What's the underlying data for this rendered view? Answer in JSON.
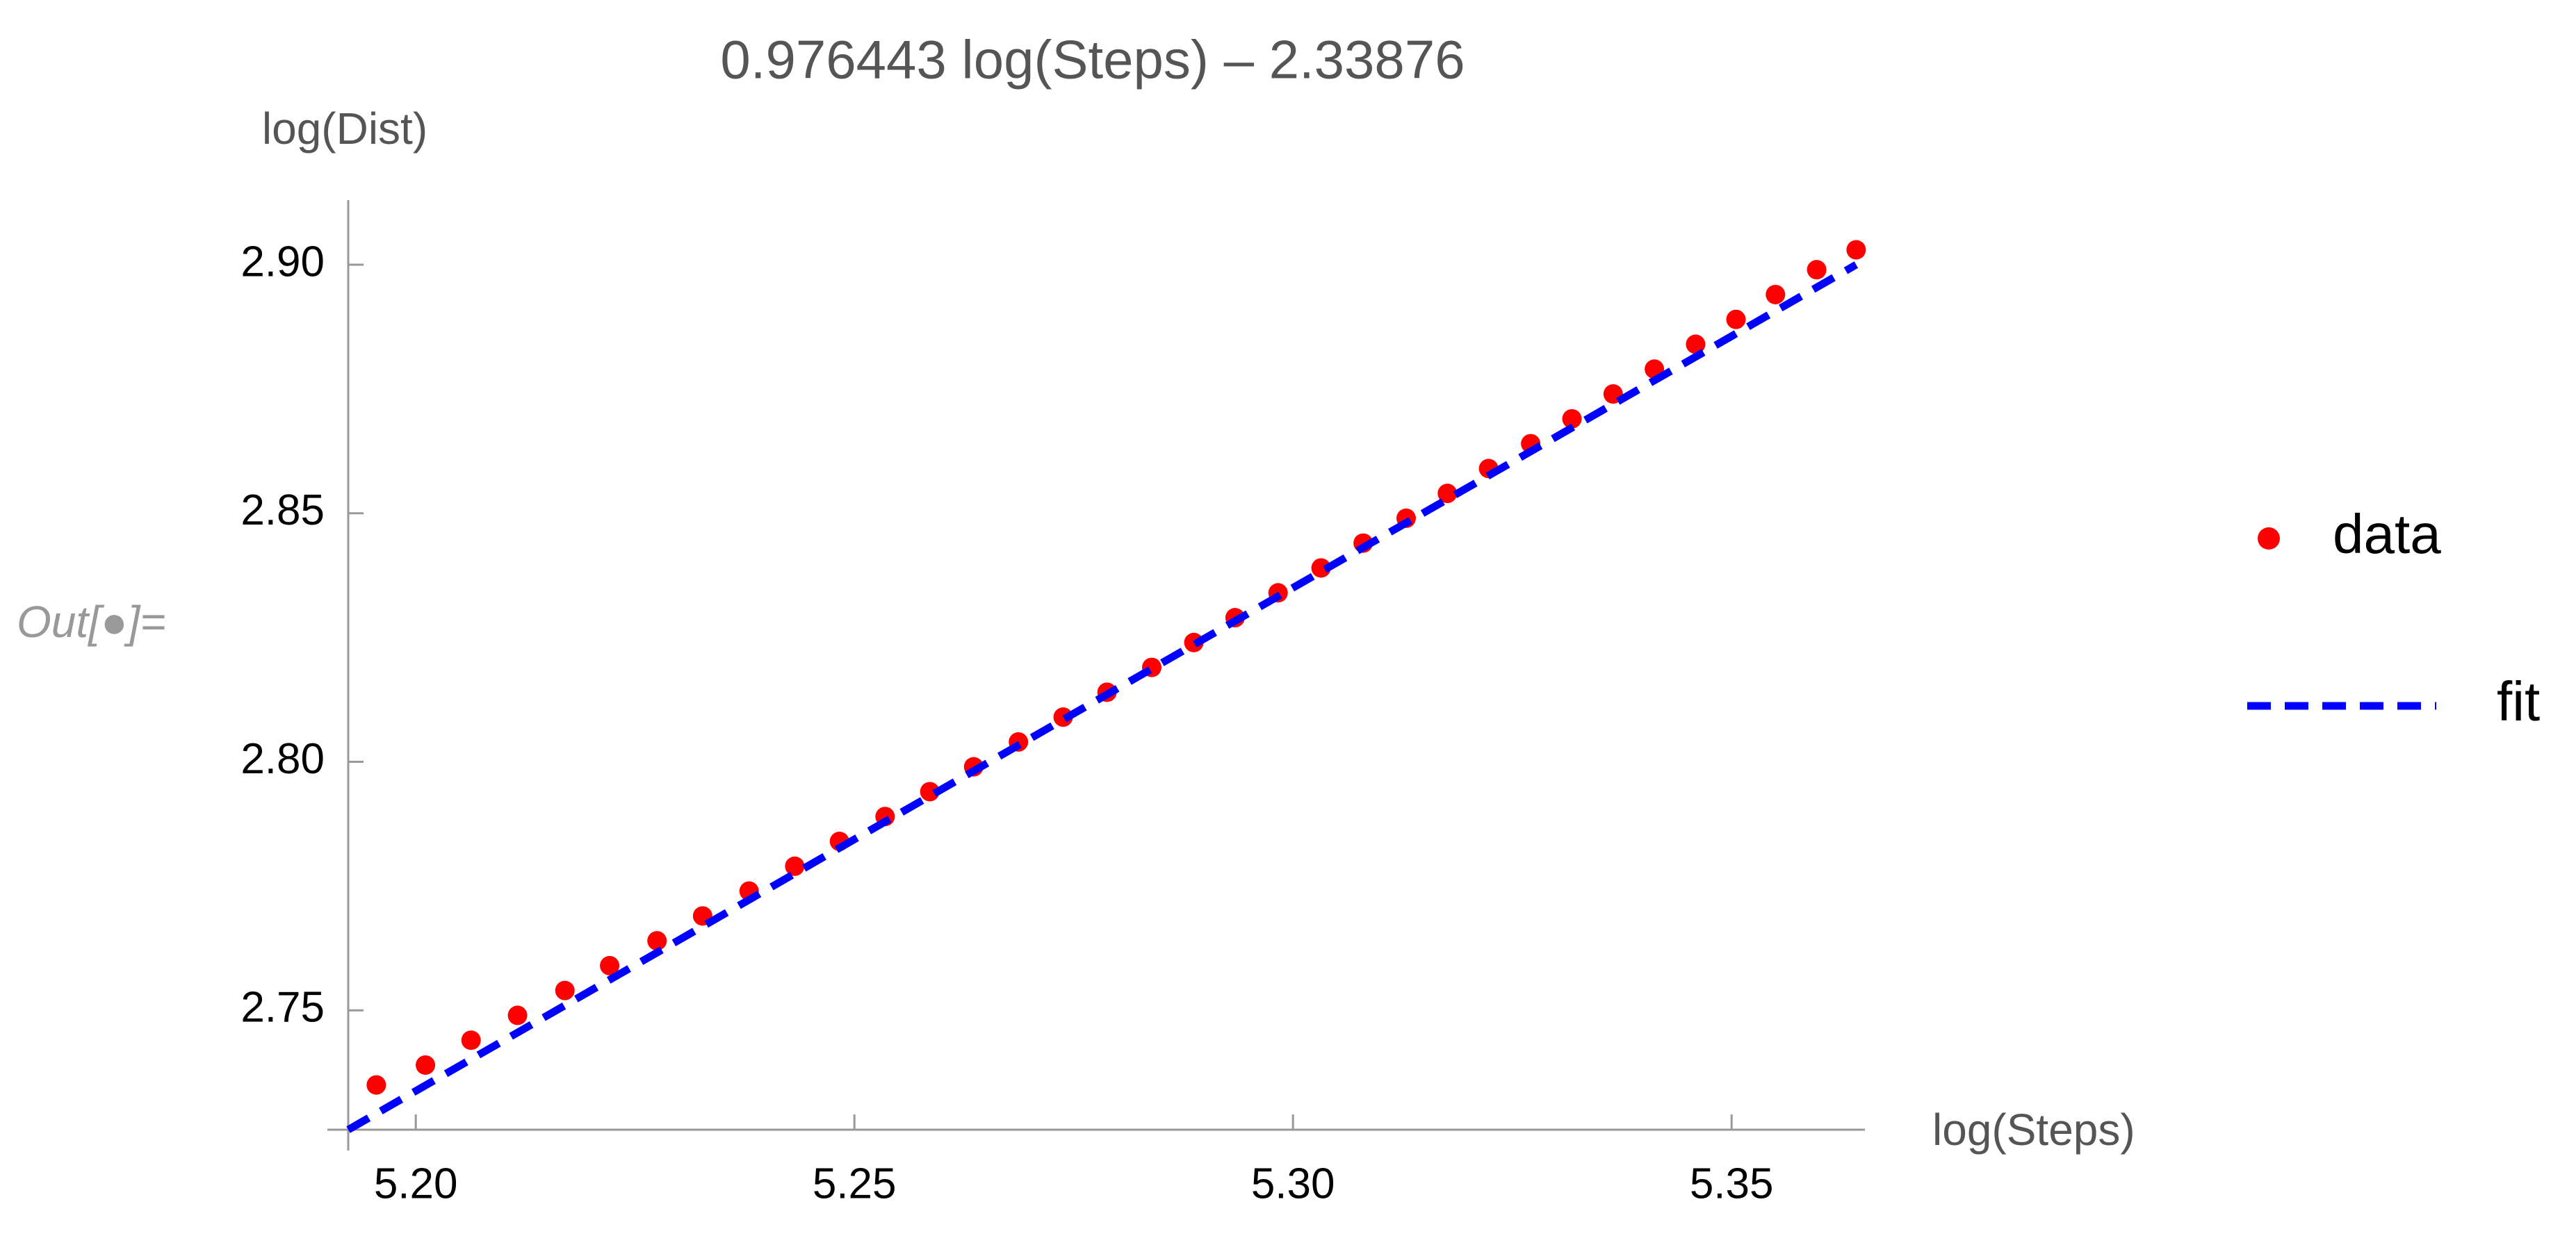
{
  "cell_label": "Out[●]=",
  "chart_data": {
    "type": "scatter",
    "title": "0.976443 log(Steps) – 2.33876",
    "x_label": "log(Steps)",
    "y_label": "log(Dist)",
    "xlim": [
      5.1923,
      5.3652
    ],
    "ylim": [
      2.726,
      2.913
    ],
    "xticks": [
      {
        "value": 5.2,
        "label": "5.20"
      },
      5.25,
      {
        "value": 5.3,
        "label": "5.30"
      },
      5.35
    ],
    "yticks": [
      {
        "value": 2.9,
        "label": "2.90"
      },
      2.85,
      {
        "value": 2.8,
        "label": "2.80"
      },
      2.75
    ],
    "legend": "right",
    "series": [
      {
        "name": "data",
        "color": "#ff0000",
        "style": "points",
        "x": [
          5.1955,
          5.2011,
          5.2063,
          5.2116,
          5.217,
          5.2221,
          5.2275,
          5.2327,
          5.238,
          5.2432,
          5.2483,
          5.2535,
          5.2586,
          5.2636,
          5.2687,
          5.2738,
          5.2788,
          5.2839,
          5.2887,
          5.2934,
          5.2983,
          5.3032,
          5.308,
          5.3129,
          5.3176,
          5.3223,
          5.3271,
          5.3318,
          5.3365,
          5.3412,
          5.3459,
          5.3505,
          5.355,
          5.3597,
          5.3642
        ],
        "values": [
          2.735,
          2.739,
          2.744,
          2.749,
          2.754,
          2.759,
          2.764,
          2.769,
          2.774,
          2.779,
          2.784,
          2.789,
          2.794,
          2.799,
          2.804,
          2.809,
          2.814,
          2.819,
          2.824,
          2.829,
          2.834,
          2.839,
          2.844,
          2.849,
          2.854,
          2.859,
          2.864,
          2.869,
          2.874,
          2.879,
          2.884,
          2.889,
          2.894,
          2.899,
          2.903
        ]
      },
      {
        "name": "fit",
        "color": "#0000ff",
        "style": "dashed",
        "x": [
          5.1923,
          5.3642
        ],
        "values": [
          2.726,
          2.9
        ]
      }
    ]
  }
}
